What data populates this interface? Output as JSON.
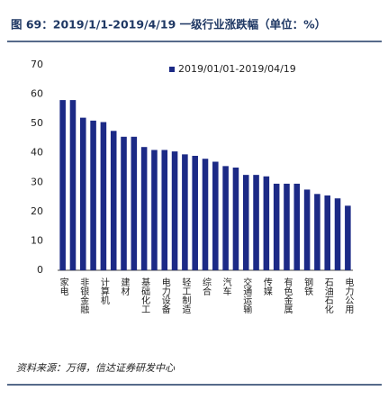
{
  "chart_data": {
    "type": "bar",
    "title": "图 69：2019/1/1-2019/4/19 一级行业涨跌幅（单位：%）",
    "source": "资料来源：万得，信达证券研发中心",
    "categories": [
      "家电",
      null,
      "非银金融",
      null,
      "计算机",
      null,
      "建材",
      null,
      "基础化工",
      null,
      "电力设备",
      null,
      "轻工制造",
      null,
      "综合",
      null,
      "汽车",
      null,
      "交通运输",
      null,
      "传媒",
      null,
      "有色金属",
      null,
      "钢铁",
      null,
      "石油石化",
      null,
      "电力公用"
    ],
    "series": [
      {
        "name": "2019/01/01-2019/04/19",
        "color": "#1c2a86",
        "values": [
          58,
          58,
          52,
          51,
          50.5,
          47.5,
          45.5,
          45.5,
          42,
          41,
          41,
          40.5,
          39.5,
          39,
          38,
          37,
          35.5,
          35,
          32.5,
          32.5,
          32,
          29.5,
          29.5,
          29.5,
          27.5,
          26,
          25.5,
          24.5,
          22
        ]
      }
    ],
    "ylim": [
      0,
      70
    ],
    "yticks": [
      0,
      10,
      20,
      30,
      40,
      50,
      60,
      70
    ],
    "legend": "top-right"
  }
}
